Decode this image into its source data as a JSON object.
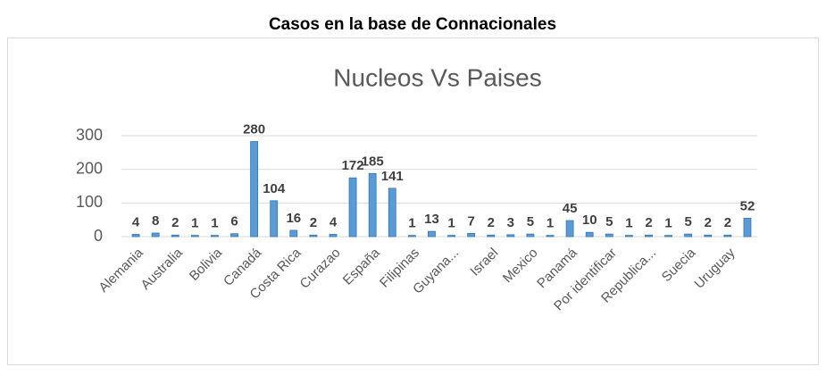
{
  "page_title": "Casos en la base de Connacionales",
  "chart_data": {
    "type": "bar",
    "title": "Nucleos Vs Paises",
    "categories": [
      "Alemania",
      null,
      "Australia",
      null,
      "Bolivia",
      null,
      "Canadá",
      null,
      "Costa Rica",
      null,
      "Curazao",
      null,
      "España",
      null,
      "Filipinas",
      null,
      "Guyana...",
      null,
      "Israel",
      null,
      "Mexico",
      null,
      "Panamá",
      null,
      "Por identificar",
      null,
      "Republica...",
      null,
      "Suecia",
      null,
      "Uruguay",
      null
    ],
    "values": [
      4,
      8,
      2,
      1,
      1,
      6,
      280,
      104,
      16,
      2,
      4,
      172,
      185,
      141,
      1,
      13,
      1,
      7,
      2,
      3,
      5,
      1,
      45,
      10,
      5,
      1,
      2,
      1,
      5,
      2,
      2,
      52
    ],
    "color": "#5b9bd5",
    "ylim": [
      0,
      300
    ],
    "yticks": [
      0,
      100,
      200,
      300
    ],
    "grid": true
  }
}
